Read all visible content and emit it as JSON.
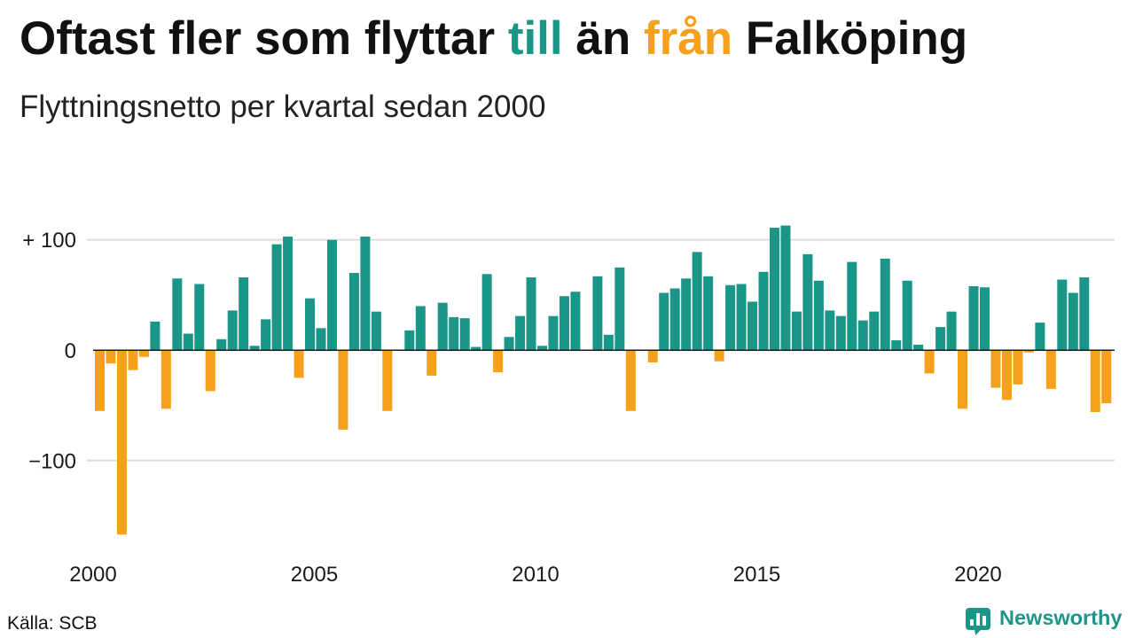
{
  "chart_data": {
    "type": "bar",
    "title": "Oftast fler som flyttar till än från Falköping",
    "title_highlights": [
      {
        "word": "till",
        "color": "#1a9688"
      },
      {
        "word": "från",
        "color": "#f6a01b"
      }
    ],
    "subtitle": "Flyttningsnetto per kvartal sedan 2000",
    "x": [
      "2000-01-01",
      "2000-04-01",
      "2000-07-01",
      "2000-10-01",
      "2001-01-01",
      "2001-04-01",
      "2001-07-01",
      "2001-10-01",
      "2002-01-01",
      "2002-04-01",
      "2002-07-01",
      "2002-10-01",
      "2003-01-01",
      "2003-04-01",
      "2003-07-01",
      "2003-10-01",
      "2004-01-01",
      "2004-04-01",
      "2004-07-01",
      "2004-10-01",
      "2005-01-01",
      "2005-04-01",
      "2005-07-01",
      "2005-10-01",
      "2006-01-01",
      "2006-04-01",
      "2006-07-01",
      "2006-10-01",
      "2007-01-01",
      "2007-04-01",
      "2007-07-01",
      "2007-10-01",
      "2008-01-01",
      "2008-04-01",
      "2008-07-01",
      "2008-10-01",
      "2009-01-01",
      "2009-04-01",
      "2009-07-01",
      "2009-10-01",
      "2010-01-01",
      "2010-04-01",
      "2010-07-01",
      "2010-10-01",
      "2011-01-01",
      "2011-04-01",
      "2011-07-01",
      "2011-10-01",
      "2012-01-01",
      "2012-04-01",
      "2012-07-01",
      "2012-10-01",
      "2013-01-01",
      "2013-04-01",
      "2013-07-01",
      "2013-10-01",
      "2014-01-01",
      "2014-04-01",
      "2014-07-01",
      "2014-10-01",
      "2015-01-01",
      "2015-04-01",
      "2015-07-01",
      "2015-10-01",
      "2016-01-01",
      "2016-04-01",
      "2016-07-01",
      "2016-10-01",
      "2017-01-01",
      "2017-04-01",
      "2017-07-01",
      "2017-10-01",
      "2018-01-01",
      "2018-04-01",
      "2018-07-01",
      "2018-10-01",
      "2019-01-01",
      "2019-04-01",
      "2019-07-01",
      "2019-10-01",
      "2020-01-01",
      "2020-04-01",
      "2020-07-01",
      "2020-10-01",
      "2021-01-01",
      "2021-04-01",
      "2021-07-01",
      "2021-10-01",
      "2022-01-01",
      "2022-04-01",
      "2022-07-01",
      "2022-10-01"
    ],
    "values": [
      -55,
      -12,
      -167,
      -18,
      -6,
      26,
      -53,
      65,
      15,
      60,
      -37,
      10,
      36,
      66,
      4,
      28,
      96,
      103,
      -25,
      47,
      20,
      100,
      -72,
      70,
      103,
      35,
      -55,
      0,
      18,
      40,
      -23,
      43,
      30,
      29,
      3,
      69,
      -20,
      12,
      31,
      66,
      4,
      31,
      49,
      53,
      0,
      67,
      14,
      75,
      -55,
      0,
      -11,
      52,
      56,
      65,
      89,
      67,
      -10,
      59,
      60,
      44,
      71,
      111,
      113,
      35,
      87,
      63,
      36,
      31,
      80,
      27,
      35,
      83,
      9,
      63,
      5,
      -21,
      21,
      35,
      -53,
      58,
      57,
      -34,
      -45,
      -31,
      -2,
      25,
      -35,
      64,
      52,
      66,
      -56,
      -48
    ],
    "xticks": [
      "2000",
      "2005",
      "2010",
      "2015",
      "2020"
    ],
    "yticks": [
      -100,
      0,
      100
    ],
    "ytick_labels": [
      "−100",
      "0",
      "+ 100"
    ],
    "xlim": [
      "2000-01-01",
      "2023-01-01"
    ],
    "ylim": [
      -170,
      115
    ],
    "grid": true,
    "colors": {
      "positive": "#1a9688",
      "negative": "#f6a01b",
      "gridline": "#dddddd",
      "zero_line": "#1a1a1a"
    }
  },
  "footer": {
    "source": "Källa: SCB",
    "brand": "Newsworthy",
    "brand_icon": "newsworthy-logo-icon",
    "brand_color": "#1d968a"
  }
}
